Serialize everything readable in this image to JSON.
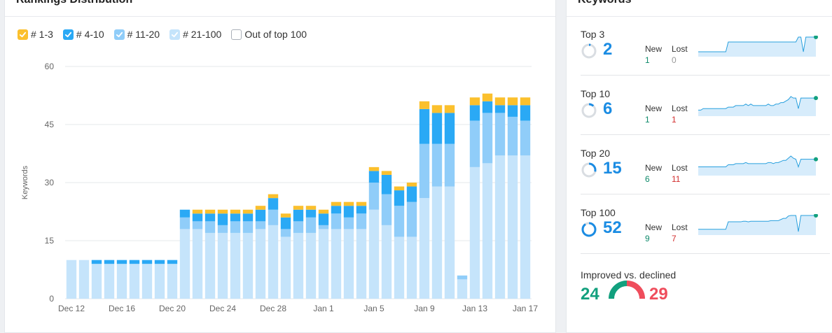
{
  "left_panel": {
    "title": "Rankings Distribution"
  },
  "right_panel": {
    "title": "Keywords"
  },
  "legend": [
    {
      "label": "# 1-3",
      "color": "#fbc02d",
      "checked": true
    },
    {
      "label": "# 4-10",
      "color": "#2aa9f5",
      "checked": true
    },
    {
      "label": "# 11-20",
      "color": "#90cdf9",
      "checked": true
    },
    {
      "label": "# 21-100",
      "color": "#c5e4fb",
      "checked": true
    },
    {
      "label": "Out of top 100",
      "color": "#ffffff",
      "checked": false
    }
  ],
  "chart_data": {
    "type": "bar",
    "stacked": true,
    "ylabel": "Keywords",
    "ylim": [
      0,
      60
    ],
    "yticks": [
      0,
      15,
      30,
      45,
      60
    ],
    "x_tick_labels": [
      "Dec 12",
      "Dec 16",
      "Dec 20",
      "Dec 24",
      "Dec 28",
      "Jan 1",
      "Jan 5",
      "Jan 9",
      "Jan 13",
      "Jan 17"
    ],
    "x_tick_index": [
      0,
      4,
      8,
      12,
      16,
      20,
      24,
      28,
      32,
      36
    ],
    "categories": [
      "Dec 12",
      "Dec 13",
      "Dec 14",
      "Dec 15",
      "Dec 16",
      "Dec 17",
      "Dec 18",
      "Dec 19",
      "Dec 20",
      "Dec 21",
      "Dec 22",
      "Dec 23",
      "Dec 24",
      "Dec 25",
      "Dec 26",
      "Dec 27",
      "Dec 28",
      "Dec 29",
      "Dec 30",
      "Dec 31",
      "Jan 1",
      "Jan 2",
      "Jan 3",
      "Jan 4",
      "Jan 5",
      "Jan 6",
      "Jan 7",
      "Jan 8",
      "Jan 9",
      "Jan 10",
      "Jan 11",
      "Jan 12",
      "Jan 13",
      "Jan 14",
      "Jan 15",
      "Jan 16",
      "Jan 17"
    ],
    "series": [
      {
        "name": "# 21-100",
        "color": "#c5e4fb",
        "values": [
          10,
          10,
          9,
          9,
          9,
          9,
          9,
          9,
          9,
          18,
          18,
          17,
          17,
          17,
          17,
          18,
          19,
          16,
          17,
          17,
          18,
          18,
          18,
          18,
          23,
          19,
          16,
          16,
          26,
          29,
          29,
          5,
          34,
          35,
          37,
          37,
          37
        ]
      },
      {
        "name": "# 11-20",
        "color": "#90cdf9",
        "values": [
          0,
          0,
          0,
          0,
          0,
          0,
          0,
          0,
          0,
          3,
          2,
          3,
          2,
          3,
          3,
          2,
          4,
          2,
          3,
          4,
          1,
          4,
          3,
          4,
          7,
          8,
          8,
          9,
          14,
          11,
          11,
          1,
          12,
          13,
          11,
          10,
          9
        ]
      },
      {
        "name": "# 4-10",
        "color": "#2aa9f5",
        "values": [
          0,
          0,
          1,
          1,
          1,
          1,
          1,
          1,
          1,
          2,
          2,
          2,
          3,
          2,
          2,
          3,
          3,
          3,
          3,
          2,
          3,
          2,
          3,
          2,
          3,
          5,
          4,
          4,
          9,
          8,
          8,
          0,
          4,
          3,
          2,
          3,
          4
        ]
      },
      {
        "name": "# 1-3",
        "color": "#fbc02d",
        "values": [
          0,
          0,
          0,
          0,
          0,
          0,
          0,
          0,
          0,
          0,
          1,
          1,
          1,
          1,
          1,
          1,
          1,
          1,
          1,
          1,
          1,
          1,
          1,
          1,
          1,
          1,
          1,
          1,
          2,
          2,
          2,
          0,
          2,
          2,
          2,
          2,
          2
        ]
      }
    ]
  },
  "keywords": [
    {
      "label": "Top 3",
      "value": "2",
      "donut_fraction": 0.04,
      "new_label": "New",
      "lost_label": "Lost",
      "new": "1",
      "lost": "0",
      "lost_color": "#999999",
      "spark": [
        1,
        1,
        1,
        1,
        1,
        1,
        1,
        1,
        1,
        1,
        1,
        1,
        3,
        3,
        3,
        3,
        3,
        3,
        3,
        3,
        3,
        3,
        3,
        3,
        3,
        3,
        3,
        3,
        3,
        3,
        3,
        3,
        3,
        3,
        3,
        3,
        3,
        3,
        3,
        3,
        4,
        4,
        1,
        4,
        4,
        4,
        4,
        4
      ]
    },
    {
      "label": "Top 10",
      "value": "6",
      "donut_fraction": 0.12,
      "new_label": "New",
      "lost_label": "Lost",
      "new": "1",
      "lost": "1",
      "lost_color": "#d32f2f",
      "spark": [
        4,
        4,
        5,
        5,
        5,
        5,
        5,
        5,
        5,
        5,
        5,
        5,
        6,
        6,
        6,
        7,
        7,
        7,
        7,
        8,
        7,
        8,
        7,
        7,
        7,
        7,
        7,
        7,
        8,
        7,
        7,
        8,
        8,
        9,
        9,
        10,
        11,
        13,
        12,
        12,
        5,
        12,
        12,
        12,
        12,
        12,
        12,
        12
      ]
    },
    {
      "label": "Top 20",
      "value": "15",
      "donut_fraction": 0.29,
      "new_label": "New",
      "lost_label": "Lost",
      "new": "6",
      "lost": "11",
      "lost_color": "#d32f2f",
      "spark": [
        8,
        8,
        8,
        8,
        8,
        8,
        8,
        8,
        8,
        8,
        8,
        8,
        10,
        10,
        10,
        11,
        11,
        11,
        11,
        12,
        11,
        11,
        11,
        11,
        11,
        11,
        11,
        11,
        12,
        12,
        11,
        12,
        12,
        13,
        14,
        14,
        16,
        18,
        16,
        15,
        8,
        15,
        15,
        15,
        15,
        15,
        15,
        15
      ]
    },
    {
      "label": "Top 100",
      "value": "52",
      "donut_fraction": 0.9,
      "new_label": "New",
      "lost_label": "Lost",
      "new": "9",
      "lost": "7",
      "lost_color": "#d32f2f",
      "spark": [
        10,
        10,
        10,
        10,
        10,
        10,
        10,
        10,
        10,
        10,
        10,
        10,
        23,
        23,
        23,
        23,
        23,
        23,
        24,
        24,
        23,
        24,
        24,
        24,
        24,
        24,
        24,
        24,
        24,
        25,
        25,
        25,
        25,
        27,
        29,
        29,
        33,
        34,
        34,
        34,
        6,
        34,
        34,
        34,
        34,
        34,
        34,
        34
      ]
    }
  ],
  "improved": {
    "label": "Improved vs. declined",
    "improved": "24",
    "declined": "29",
    "improved_color": "#12a07e",
    "declined_color": "#ef4d5c"
  }
}
